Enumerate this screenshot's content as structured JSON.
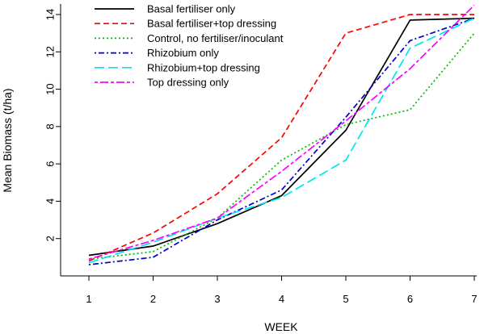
{
  "chart_data": {
    "type": "line",
    "title": "",
    "xlabel": "WEEK",
    "ylabel": "Mean Biomass (t/ha)",
    "x": [
      1,
      2,
      3,
      4,
      5,
      6,
      7
    ],
    "xlim": [
      1,
      7
    ],
    "ylim": [
      0,
      14
    ],
    "x_ticks": [
      "1",
      "2",
      "3",
      "4",
      "5",
      "6",
      "7"
    ],
    "y_ticks": [
      "2",
      "4",
      "6",
      "8",
      "10",
      "12",
      "14"
    ],
    "grid": false,
    "legend_position": "top-left",
    "series": [
      {
        "name": "Basal fertiliser only",
        "color": "#000000",
        "dash": "solid",
        "values": [
          1.1,
          1.6,
          2.8,
          4.3,
          7.8,
          13.7,
          13.8
        ]
      },
      {
        "name": "Basal fertiliser+top dressing",
        "color": "#ff0000",
        "dash": "dashed",
        "values": [
          0.8,
          2.3,
          4.4,
          7.4,
          13.0,
          14.0,
          14.0
        ]
      },
      {
        "name": "Control, no fertiliser/inoculant",
        "color": "#00bb00",
        "dash": "dotted",
        "values": [
          0.9,
          1.3,
          3.1,
          6.2,
          8.1,
          8.9,
          13.0
        ]
      },
      {
        "name": "Rhizobium only",
        "color": "#0000cc",
        "dash": "dashdot",
        "values": [
          0.6,
          1.0,
          3.0,
          4.6,
          8.5,
          12.6,
          13.8
        ]
      },
      {
        "name": "Rhizobium+top dressing",
        "color": "#00e5ee",
        "dash": "longdash",
        "values": [
          0.7,
          1.8,
          3.1,
          4.2,
          6.2,
          12.2,
          13.8
        ]
      },
      {
        "name": "Top dressing only",
        "color": "#ff00ff",
        "dash": "twodash",
        "values": [
          0.9,
          1.9,
          3.1,
          5.6,
          8.3,
          11.1,
          14.5
        ]
      }
    ]
  }
}
